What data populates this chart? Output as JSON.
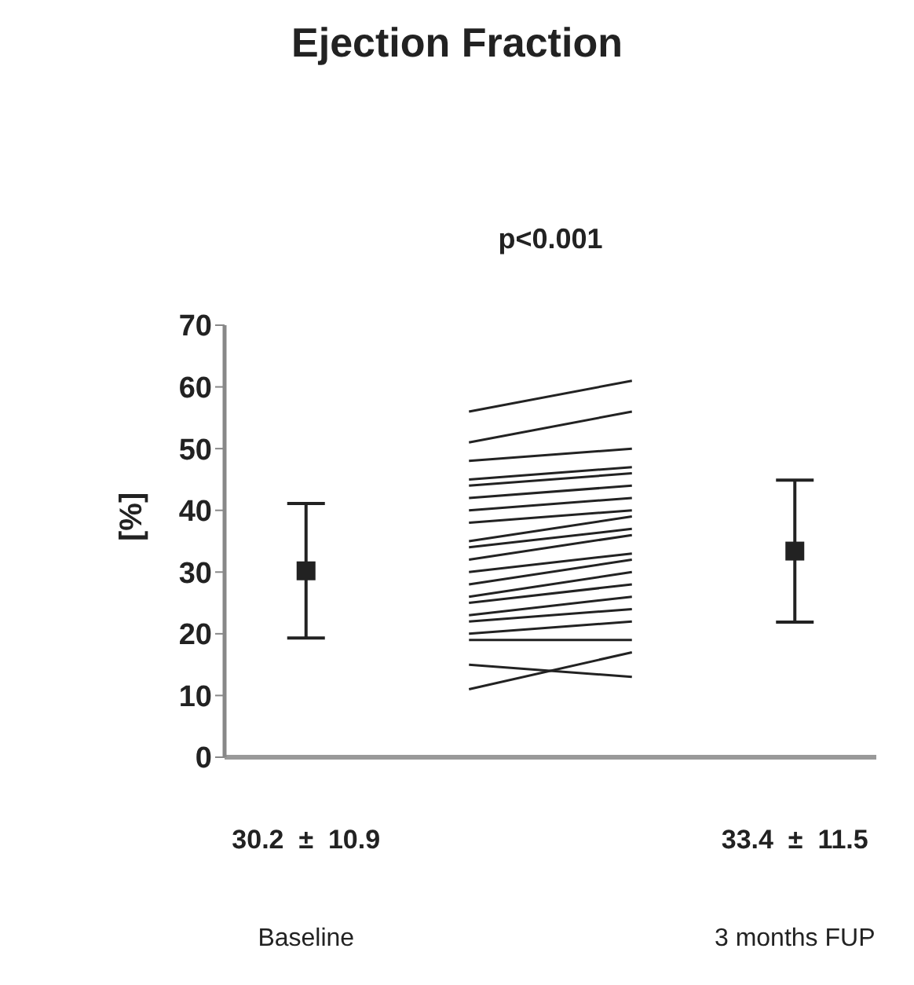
{
  "chart_data": {
    "type": "line",
    "title": "Ejection Fraction",
    "ylabel": "[%]",
    "annotations": [
      "p<0.001"
    ],
    "categories": [
      "Baseline",
      null,
      null,
      "3 months FUP"
    ],
    "ylim": [
      0,
      70
    ],
    "yticks": [
      0,
      10,
      20,
      30,
      40,
      50,
      60,
      70
    ],
    "grid": false,
    "legend": false,
    "marker": "none",
    "line_style": "solid",
    "series": [
      {
        "type": "scatter",
        "color": "#222222",
        "marker": "square",
        "values": [
          30.2,
          null,
          null,
          33.4
        ],
        "errors": [
          10.9,
          null,
          null,
          11.5
        ],
        "value_labels": [
          "30.2  ±  10.9",
          null,
          null,
          "33.4  ±  11.5"
        ]
      },
      {
        "color": "#222222",
        "values": [
          null,
          56,
          61,
          null
        ]
      },
      {
        "color": "#222222",
        "values": [
          null,
          51,
          56,
          null
        ]
      },
      {
        "color": "#222222",
        "values": [
          null,
          48,
          50,
          null
        ]
      },
      {
        "color": "#222222",
        "values": [
          null,
          45,
          47,
          null
        ]
      },
      {
        "color": "#222222",
        "values": [
          null,
          44,
          46,
          null
        ]
      },
      {
        "color": "#222222",
        "values": [
          null,
          42,
          44,
          null
        ]
      },
      {
        "color": "#222222",
        "values": [
          null,
          40,
          42,
          null
        ]
      },
      {
        "color": "#222222",
        "values": [
          null,
          38,
          40,
          null
        ]
      },
      {
        "color": "#222222",
        "values": [
          null,
          35,
          39,
          null
        ]
      },
      {
        "color": "#222222",
        "values": [
          null,
          34,
          37,
          null
        ]
      },
      {
        "color": "#222222",
        "values": [
          null,
          32,
          36,
          null
        ]
      },
      {
        "color": "#222222",
        "values": [
          null,
          30,
          33,
          null
        ]
      },
      {
        "color": "#222222",
        "values": [
          null,
          28,
          32,
          null
        ]
      },
      {
        "color": "#222222",
        "values": [
          null,
          26,
          30,
          null
        ]
      },
      {
        "color": "#222222",
        "values": [
          null,
          25,
          28,
          null
        ]
      },
      {
        "color": "#222222",
        "values": [
          null,
          23,
          26,
          null
        ]
      },
      {
        "color": "#222222",
        "values": [
          null,
          22,
          24,
          null
        ]
      },
      {
        "color": "#222222",
        "values": [
          null,
          20,
          22,
          null
        ]
      },
      {
        "color": "#222222",
        "values": [
          null,
          19,
          19,
          null
        ]
      },
      {
        "color": "#222222",
        "values": [
          null,
          15,
          13,
          null
        ]
      },
      {
        "color": "#222222",
        "values": [
          null,
          11,
          17,
          null
        ]
      }
    ]
  }
}
